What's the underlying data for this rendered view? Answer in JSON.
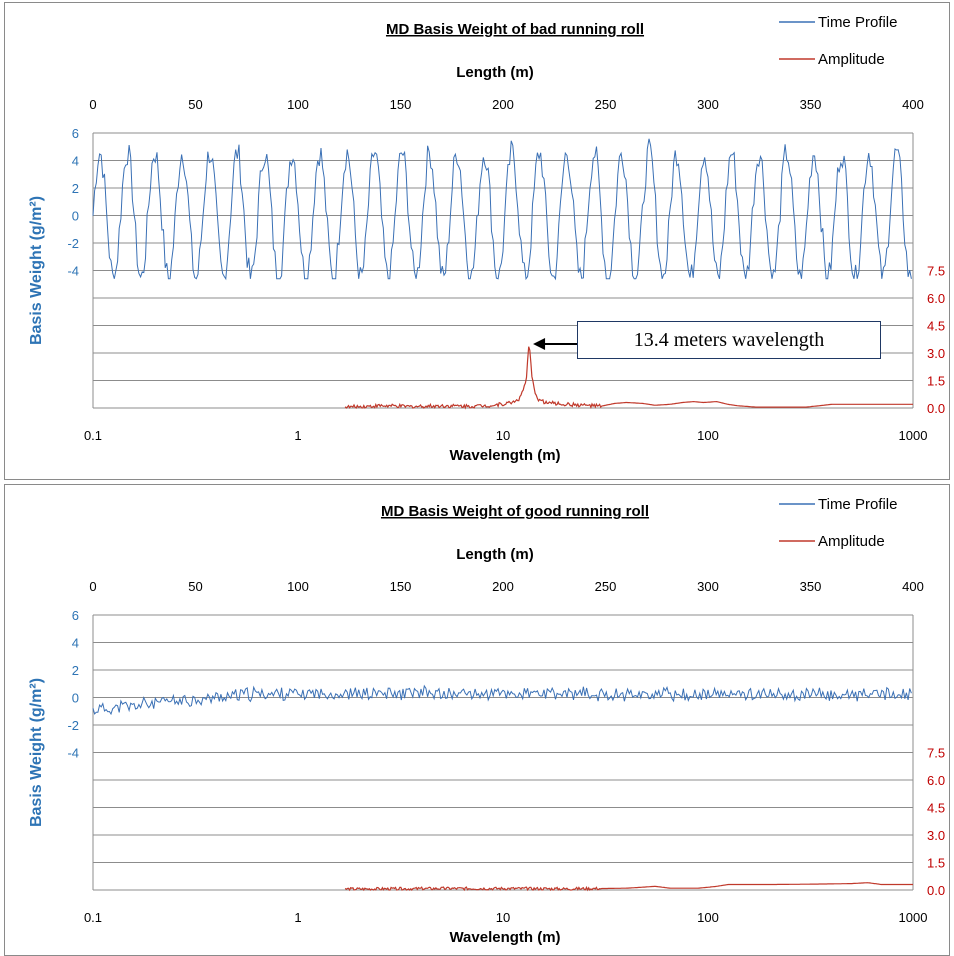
{
  "colors": {
    "time_profile": "#3a70b5",
    "amplitude": "#c0392b",
    "grid": "#8c8c8c",
    "left_axis": "#2e74b5",
    "right_axis": "#c00000"
  },
  "legend": {
    "time_profile": "Time Profile",
    "amplitude": "Amplitude"
  },
  "chart_data": [
    {
      "type": "line",
      "title": "MD Basis Weight of bad running roll",
      "x_top_label": "Length (m)",
      "x_top_ticks": [
        "0",
        "50",
        "100",
        "150",
        "200",
        "250",
        "300",
        "350",
        "400"
      ],
      "xlim_top": [
        0,
        400
      ],
      "ylabel": "Basis Weight (g/m²)",
      "y_left_ticks": [
        "6",
        "4",
        "2",
        "0",
        "-2",
        "-4"
      ],
      "ylim_left": [
        -4,
        6
      ],
      "y_right_ticks": [
        "7.5",
        "6.0",
        "4.5",
        "3.0",
        "1.5",
        "0.0"
      ],
      "ylim_right": [
        0,
        7.5
      ],
      "x_bottom_label": "Wavelength (m)",
      "x_bottom_ticks": [
        "0.1",
        "1",
        "10",
        "100",
        "1000"
      ],
      "xlim_bottom": [
        0.1,
        1000
      ],
      "x_bottom_scale": "log",
      "grid": true,
      "legend_position": "top-right",
      "annotation": "13.4 meters wavelength",
      "annotation_target": {
        "wavelength": 13.4,
        "amplitude": 3.6
      },
      "series": [
        {
          "name": "Time Profile",
          "axis": "left",
          "kind": "sine",
          "period": 13.4,
          "amplitude": 4.6,
          "noise": 1.0,
          "spacing": 0.8,
          "seed": 7
        },
        {
          "name": "Amplitude",
          "axis": "right",
          "points": [
            [
              1.7,
              0.05
            ],
            [
              2.5,
              0.12
            ],
            [
              3.5,
              0.08
            ],
            [
              5,
              0.12
            ],
            [
              7,
              0.1
            ],
            [
              9,
              0.15
            ],
            [
              11,
              0.3
            ],
            [
              12,
              0.5
            ],
            [
              12.5,
              0.9
            ],
            [
              13,
              1.6
            ],
            [
              13.4,
              3.6
            ],
            [
              13.8,
              1.8
            ],
            [
              14.2,
              1.0
            ],
            [
              14.8,
              0.5
            ],
            [
              16,
              0.3
            ],
            [
              20,
              0.2
            ],
            [
              25,
              0.15
            ],
            [
              30,
              0.1
            ],
            [
              35,
              0.25
            ],
            [
              40,
              0.3
            ],
            [
              48,
              0.25
            ],
            [
              55,
              0.15
            ],
            [
              65,
              0.2
            ],
            [
              75,
              0.3
            ],
            [
              85,
              0.35
            ],
            [
              95,
              0.3
            ],
            [
              110,
              0.35
            ],
            [
              125,
              0.2
            ],
            [
              140,
              0.12
            ],
            [
              170,
              0.05
            ],
            [
              300,
              0.05
            ],
            [
              400,
              0.2
            ],
            [
              1000,
              0.2
            ]
          ],
          "noise": 0.1
        }
      ]
    },
    {
      "type": "line",
      "title": "MD Basis Weight of good running roll",
      "x_top_label": "Length (m)",
      "x_top_ticks": [
        "0",
        "50",
        "100",
        "150",
        "200",
        "250",
        "300",
        "350",
        "400"
      ],
      "xlim_top": [
        0,
        400
      ],
      "ylabel": "Basis Weight (g/m²)",
      "y_left_ticks": [
        "6",
        "4",
        "2",
        "0",
        "-2",
        "-4"
      ],
      "ylim_left": [
        -4,
        6
      ],
      "y_right_ticks": [
        "7.5",
        "6.0",
        "4.5",
        "3.0",
        "1.5",
        "0.0"
      ],
      "ylim_right": [
        0,
        7.5
      ],
      "x_bottom_label": "Wavelength (m)",
      "x_bottom_ticks": [
        "0.1",
        "1",
        "10",
        "100",
        "1000"
      ],
      "xlim_bottom": [
        0.1,
        1000
      ],
      "x_bottom_scale": "log",
      "grid": true,
      "legend_position": "top-right",
      "series": [
        {
          "name": "Time Profile",
          "axis": "left",
          "kind": "noise",
          "period": 0,
          "amplitude": 0.35,
          "noise": 0.7,
          "spacing": 0.8,
          "seed": 11,
          "drift": [
            [
              0,
              -0.9
            ],
            [
              40,
              -0.3
            ],
            [
              80,
              0.3
            ],
            [
              400,
              0.2
            ]
          ]
        },
        {
          "name": "Amplitude",
          "axis": "right",
          "points": [
            [
              1.7,
              0.05
            ],
            [
              5,
              0.08
            ],
            [
              10,
              0.08
            ],
            [
              20,
              0.06
            ],
            [
              40,
              0.1
            ],
            [
              55,
              0.2
            ],
            [
              65,
              0.1
            ],
            [
              90,
              0.1
            ],
            [
              110,
              0.2
            ],
            [
              125,
              0.3
            ],
            [
              200,
              0.3
            ],
            [
              500,
              0.35
            ],
            [
              600,
              0.4
            ],
            [
              700,
              0.3
            ],
            [
              1000,
              0.3
            ]
          ],
          "noise": 0.08
        }
      ]
    }
  ]
}
